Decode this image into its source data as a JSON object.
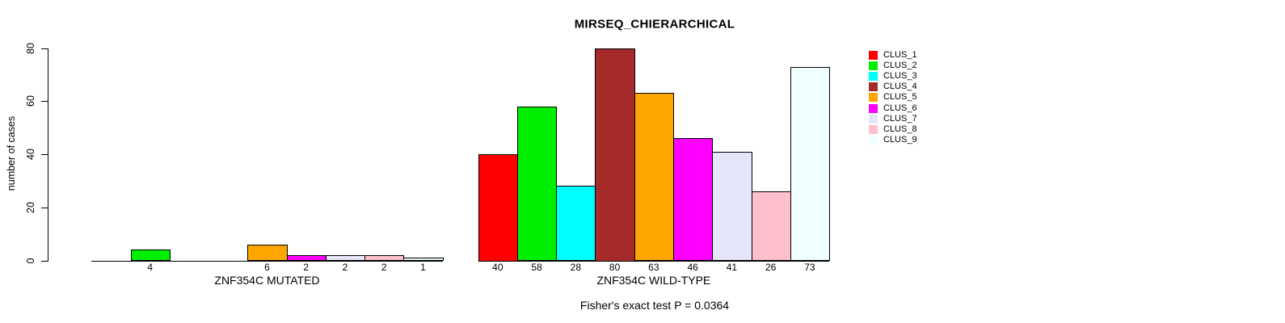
{
  "chart_data": {
    "type": "bar",
    "title": "MIRSEQ_CHIERARCHICAL",
    "ylabel": "number of cases",
    "xlabel": "",
    "annotation": "Fisher's exact test P = 0.0364",
    "categories": [
      "ZNF354C MUTATED",
      "ZNF354C WILD-TYPE"
    ],
    "series": [
      {
        "name": "CLUS_1",
        "color": "#FF0000",
        "values": [
          0,
          40
        ]
      },
      {
        "name": "CLUS_2",
        "color": "#00EE00",
        "values": [
          4,
          58
        ]
      },
      {
        "name": "CLUS_3",
        "color": "#00FFFF",
        "values": [
          0,
          28
        ]
      },
      {
        "name": "CLUS_4",
        "color": "#A52A2A",
        "values": [
          0,
          80
        ]
      },
      {
        "name": "CLUS_5",
        "color": "#FFA500",
        "values": [
          6,
          63
        ]
      },
      {
        "name": "CLUS_6",
        "color": "#FF00FF",
        "values": [
          2,
          46
        ]
      },
      {
        "name": "CLUS_7",
        "color": "#E6E6FA",
        "values": [
          2,
          41
        ]
      },
      {
        "name": "CLUS_8",
        "color": "#FFC0CB",
        "values": [
          2,
          26
        ]
      },
      {
        "name": "CLUS_9",
        "color": "#F0FFFF",
        "values": [
          1,
          73
        ]
      }
    ],
    "ylim": [
      0,
      80
    ],
    "y_ticks": [
      0,
      20,
      40,
      60,
      80
    ],
    "grid": false,
    "legend_position": "right",
    "bar_border_color": "#000000",
    "zero_bars_unlabeled": true
  }
}
